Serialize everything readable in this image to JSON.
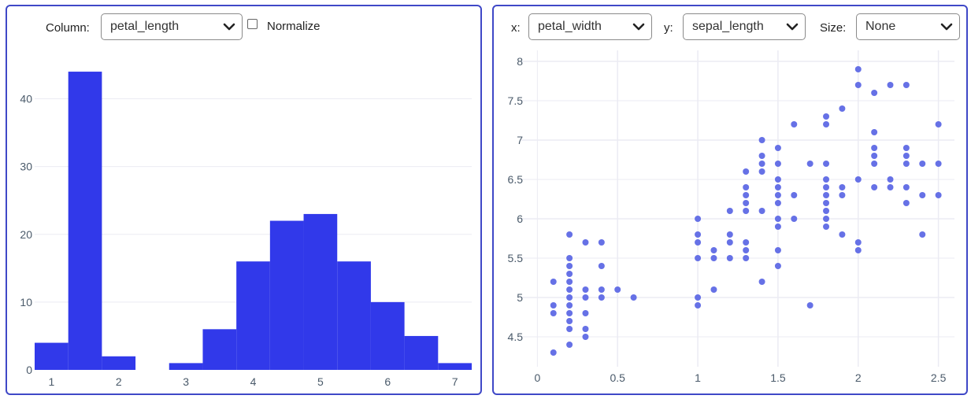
{
  "histogram_panel": {
    "column_label": "Column:",
    "column_value": "petal_length",
    "normalize_label": "Normalize",
    "normalize_checked": false
  },
  "scatter_panel": {
    "x_label": "x:",
    "x_value": "petal_width",
    "y_label": "y:",
    "y_value": "sepal_length",
    "size_label": "Size:",
    "size_value": "None"
  },
  "colors": {
    "panel_border": "#3f48c7",
    "bar_fill": "#3139ea",
    "point_fill": "#6671e6",
    "grid": "#ebebf3"
  },
  "chart_data": [
    {
      "type": "bar",
      "title": "",
      "xlabel": "",
      "ylabel": "",
      "bins": [
        {
          "x0": 0.75,
          "x1": 1.25,
          "count": 4
        },
        {
          "x0": 1.25,
          "x1": 1.75,
          "count": 44
        },
        {
          "x0": 1.75,
          "x1": 2.25,
          "count": 2
        },
        {
          "x0": 2.25,
          "x1": 2.75,
          "count": 0
        },
        {
          "x0": 2.75,
          "x1": 3.25,
          "count": 1
        },
        {
          "x0": 3.25,
          "x1": 3.75,
          "count": 6
        },
        {
          "x0": 3.75,
          "x1": 4.25,
          "count": 16
        },
        {
          "x0": 4.25,
          "x1": 4.75,
          "count": 22
        },
        {
          "x0": 4.75,
          "x1": 5.25,
          "count": 23
        },
        {
          "x0": 5.25,
          "x1": 5.75,
          "count": 16
        },
        {
          "x0": 5.75,
          "x1": 6.25,
          "count": 10
        },
        {
          "x0": 6.25,
          "x1": 6.75,
          "count": 5
        },
        {
          "x0": 6.75,
          "x1": 7.25,
          "count": 1
        }
      ],
      "x_ticks": [
        1,
        2,
        3,
        4,
        5,
        6,
        7
      ],
      "y_ticks": [
        0,
        10,
        20,
        30,
        40
      ],
      "xlim": [
        0.75,
        7.25
      ],
      "ylim": [
        0,
        49
      ],
      "grid": true
    },
    {
      "type": "scatter",
      "title": "",
      "xlabel": "",
      "ylabel": "",
      "x_ticks": [
        0,
        0.5,
        1,
        1.5,
        2,
        2.5
      ],
      "y_ticks": [
        4.5,
        5,
        5.5,
        6,
        6.5,
        7,
        7.5,
        8
      ],
      "xlim": [
        -0.1,
        2.6
      ],
      "ylim": [
        4.2,
        8.1
      ],
      "grid": true,
      "points": [
        [
          0.1,
          5.2
        ],
        [
          0.1,
          4.9
        ],
        [
          0.1,
          4.8
        ],
        [
          0.1,
          4.3
        ],
        [
          0.2,
          5.8
        ],
        [
          0.2,
          5.5
        ],
        [
          0.2,
          5.4
        ],
        [
          0.2,
          5.3
        ],
        [
          0.2,
          5.2
        ],
        [
          0.2,
          5.1
        ],
        [
          0.2,
          5.0
        ],
        [
          0.2,
          4.9
        ],
        [
          0.2,
          4.8
        ],
        [
          0.2,
          4.7
        ],
        [
          0.2,
          4.6
        ],
        [
          0.2,
          4.4
        ],
        [
          0.3,
          5.7
        ],
        [
          0.3,
          5.1
        ],
        [
          0.3,
          5.0
        ],
        [
          0.3,
          4.8
        ],
        [
          0.3,
          4.6
        ],
        [
          0.3,
          4.5
        ],
        [
          0.4,
          5.7
        ],
        [
          0.4,
          5.4
        ],
        [
          0.4,
          5.1
        ],
        [
          0.4,
          5.0
        ],
        [
          0.5,
          5.1
        ],
        [
          0.6,
          5.0
        ],
        [
          1.0,
          6.0
        ],
        [
          1.0,
          5.8
        ],
        [
          1.0,
          5.7
        ],
        [
          1.0,
          5.5
        ],
        [
          1.0,
          5.0
        ],
        [
          1.0,
          4.9
        ],
        [
          1.1,
          5.6
        ],
        [
          1.1,
          5.5
        ],
        [
          1.1,
          5.1
        ],
        [
          1.2,
          6.1
        ],
        [
          1.2,
          5.8
        ],
        [
          1.2,
          5.7
        ],
        [
          1.2,
          5.5
        ],
        [
          1.3,
          6.6
        ],
        [
          1.3,
          6.4
        ],
        [
          1.3,
          6.3
        ],
        [
          1.3,
          6.2
        ],
        [
          1.3,
          6.1
        ],
        [
          1.3,
          5.7
        ],
        [
          1.3,
          5.6
        ],
        [
          1.3,
          5.5
        ],
        [
          1.4,
          7.0
        ],
        [
          1.4,
          6.8
        ],
        [
          1.4,
          6.7
        ],
        [
          1.4,
          6.6
        ],
        [
          1.4,
          6.1
        ],
        [
          1.4,
          5.2
        ],
        [
          1.5,
          6.9
        ],
        [
          1.5,
          6.7
        ],
        [
          1.5,
          6.5
        ],
        [
          1.5,
          6.4
        ],
        [
          1.5,
          6.3
        ],
        [
          1.5,
          6.2
        ],
        [
          1.5,
          6.0
        ],
        [
          1.5,
          5.9
        ],
        [
          1.5,
          5.6
        ],
        [
          1.5,
          5.4
        ],
        [
          1.6,
          7.2
        ],
        [
          1.6,
          6.3
        ],
        [
          1.6,
          6.0
        ],
        [
          1.7,
          6.7
        ],
        [
          1.7,
          4.9
        ],
        [
          1.8,
          7.3
        ],
        [
          1.8,
          7.2
        ],
        [
          1.8,
          6.7
        ],
        [
          1.8,
          6.5
        ],
        [
          1.8,
          6.4
        ],
        [
          1.8,
          6.3
        ],
        [
          1.8,
          6.2
        ],
        [
          1.8,
          6.1
        ],
        [
          1.8,
          6.0
        ],
        [
          1.8,
          5.9
        ],
        [
          1.9,
          7.4
        ],
        [
          1.9,
          6.4
        ],
        [
          1.9,
          6.3
        ],
        [
          1.9,
          5.8
        ],
        [
          2.0,
          7.9
        ],
        [
          2.0,
          7.7
        ],
        [
          2.0,
          6.5
        ],
        [
          2.0,
          5.7
        ],
        [
          2.0,
          5.6
        ],
        [
          2.1,
          7.6
        ],
        [
          2.1,
          7.1
        ],
        [
          2.1,
          6.9
        ],
        [
          2.1,
          6.8
        ],
        [
          2.1,
          6.7
        ],
        [
          2.1,
          6.4
        ],
        [
          2.2,
          7.7
        ],
        [
          2.2,
          6.5
        ],
        [
          2.2,
          6.4
        ],
        [
          2.3,
          7.7
        ],
        [
          2.3,
          6.9
        ],
        [
          2.3,
          6.8
        ],
        [
          2.3,
          6.7
        ],
        [
          2.3,
          6.4
        ],
        [
          2.3,
          6.2
        ],
        [
          2.4,
          6.7
        ],
        [
          2.4,
          6.3
        ],
        [
          2.4,
          5.8
        ],
        [
          2.5,
          7.2
        ],
        [
          2.5,
          6.7
        ],
        [
          2.5,
          6.3
        ]
      ]
    }
  ]
}
